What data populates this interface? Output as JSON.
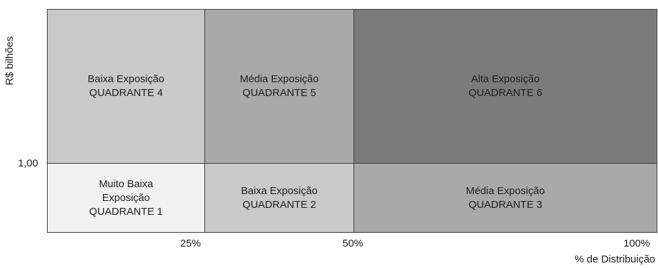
{
  "y_axis": {
    "title": "R$ bilhões",
    "tick": "1,00"
  },
  "x_axis": {
    "title": "% de Distribuição",
    "ticks": [
      "25%",
      "50%",
      "100%"
    ]
  },
  "quadrants": {
    "q1": {
      "lines": [
        "Muito Baixa",
        "Exposição",
        "QUADRANTE 1"
      ],
      "color": "#f1f1f1"
    },
    "q2": {
      "lines": [
        "Baixa Exposição",
        "QUADRANTE 2"
      ],
      "color": "#c9c9c9"
    },
    "q3": {
      "lines": [
        "Média Exposição",
        "QUADRANTE 3"
      ],
      "color": "#a9a9a9"
    },
    "q4": {
      "lines": [
        "Baixa Exposição",
        "QUADRANTE 4"
      ],
      "color": "#c9c9c9"
    },
    "q5": {
      "lines": [
        "Média Exposição",
        "QUADRANTE 5"
      ],
      "color": "#a9a9a9"
    },
    "q6": {
      "lines": [
        "Alta Exposição",
        "QUADRANTE 6"
      ],
      "color": "#7b7b7b"
    }
  }
}
